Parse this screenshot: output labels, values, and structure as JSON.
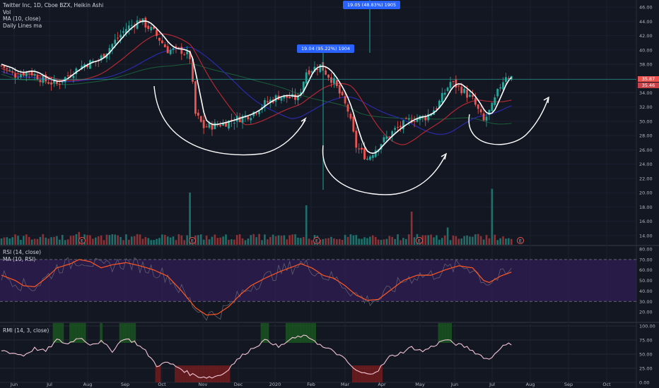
{
  "header": {
    "title": "Twitter Inc, 1D, Cboe BZX, Heikin Ashi",
    "vol": "Vol",
    "ma": "MA (10, close)",
    "daily": "Daily Lines ma"
  },
  "rsi_panel": {
    "title": "RSI (14, close)",
    "ma": "MA (10, RSI)"
  },
  "rmi_panel": {
    "title": "RMI (14, 3, close)"
  },
  "annotations": {
    "box1": "19.04 (95.22%) 1904",
    "box2": "19.05 (48.83%) 1905",
    "last_price": "35.87",
    "last_price2": "35.46"
  },
  "colors": {
    "up": "#26a69a",
    "down": "#ef5350",
    "ma10": "#ffffff",
    "ma_red": "#b22833",
    "ma_blue": "#2a2aa8",
    "ma_green": "#1b5e3a",
    "rsi_line": "#ff5722",
    "rsi_band": "#3d1f66",
    "rmi_line": "#f3c5d6"
  },
  "chart_data": [
    {
      "type": "candlestick",
      "title": "Twitter Inc, 1D, Cboe BZX, Heikin Ashi",
      "x_labels": [
        "Jun",
        "Jul",
        "Aug",
        "Sep",
        "Oct",
        "Nov",
        "Dec",
        "2020",
        "Feb",
        "Mar",
        "Apr",
        "May",
        "Jun",
        "Jul",
        "Aug",
        "Sep",
        "Oct"
      ],
      "y_ticks": [
        14,
        16,
        18,
        20,
        22,
        24,
        26,
        28,
        30,
        32,
        34,
        36,
        38,
        40,
        42,
        44,
        46
      ],
      "ylim": [
        12.6,
        47
      ],
      "price_path": [
        [
          0,
          37.8
        ],
        [
          5,
          36.5
        ],
        [
          10,
          37
        ],
        [
          15,
          35.8
        ],
        [
          20,
          35.2
        ],
        [
          25,
          36.7
        ],
        [
          30,
          38
        ],
        [
          35,
          38.5
        ],
        [
          40,
          40.8
        ],
        [
          45,
          43
        ],
        [
          50,
          44.2
        ],
        [
          55,
          42.5
        ],
        [
          60,
          40
        ],
        [
          65,
          39.9
        ],
        [
          68,
          39
        ],
        [
          70,
          31
        ],
        [
          73,
          29.2
        ],
        [
          78,
          29.5
        ],
        [
          84,
          30.2
        ],
        [
          90,
          31
        ],
        [
          95,
          32.5
        ],
        [
          100,
          33.5
        ],
        [
          107,
          33.2
        ],
        [
          110,
          37
        ],
        [
          115,
          37.8
        ],
        [
          120,
          35.5
        ],
        [
          125,
          31.5
        ],
        [
          128,
          26.5
        ],
        [
          132,
          24.8
        ],
        [
          137,
          27
        ],
        [
          142,
          28.8
        ],
        [
          148,
          30.3
        ],
        [
          153,
          30.6
        ],
        [
          157,
          32
        ],
        [
          162,
          35.5
        ],
        [
          166,
          34.5
        ],
        [
          170,
          33
        ],
        [
          174,
          30
        ],
        [
          177,
          32
        ],
        [
          180,
          35
        ],
        [
          182,
          36.5
        ],
        [
          184,
          36.2
        ]
      ],
      "volume": {
        "baseline": 5,
        "spikes": [
          {
            "x_index": 28,
            "rel": 1.8
          },
          {
            "x_index": 68,
            "rel": 8
          },
          {
            "x_index": 110,
            "rel": 6
          },
          {
            "x_index": 148,
            "rel": 5
          },
          {
            "x_index": 161,
            "rel": 2.5
          },
          {
            "x_index": 177,
            "rel": 8.6
          }
        ]
      },
      "earnings_markers": [
        "E",
        "E",
        "E",
        "E",
        "E"
      ],
      "series": [
        {
          "name": "MA (10, close)",
          "color": "#ffffff"
        },
        {
          "name": "Daily Lines ma",
          "colors": [
            "#b22833",
            "#2a2aa8",
            "#1b5e3a"
          ]
        }
      ],
      "last_price": 35.87
    },
    {
      "type": "line",
      "title": "RSI (14, close)",
      "ylim": [
        10,
        80
      ],
      "y_ticks": [
        20,
        30,
        40,
        50,
        60,
        70,
        80
      ],
      "bands": [
        30,
        70
      ],
      "rsi_ma_path": [
        [
          0,
          55
        ],
        [
          5,
          50
        ],
        [
          8,
          45
        ],
        [
          12,
          44
        ],
        [
          16,
          52
        ],
        [
          20,
          62
        ],
        [
          25,
          66
        ],
        [
          28,
          70
        ],
        [
          32,
          68
        ],
        [
          36,
          62
        ],
        [
          40,
          65
        ],
        [
          45,
          67
        ],
        [
          50,
          64
        ],
        [
          55,
          60
        ],
        [
          60,
          54
        ],
        [
          65,
          40
        ],
        [
          70,
          24
        ],
        [
          74,
          17
        ],
        [
          78,
          18
        ],
        [
          82,
          25
        ],
        [
          86,
          36
        ],
        [
          90,
          45
        ],
        [
          95,
          52
        ],
        [
          100,
          58
        ],
        [
          105,
          63
        ],
        [
          108,
          66
        ],
        [
          112,
          62
        ],
        [
          116,
          55
        ],
        [
          120,
          52
        ],
        [
          124,
          45
        ],
        [
          128,
          36
        ],
        [
          132,
          31
        ],
        [
          136,
          32
        ],
        [
          140,
          40
        ],
        [
          145,
          50
        ],
        [
          150,
          55
        ],
        [
          155,
          55
        ],
        [
          160,
          60
        ],
        [
          165,
          64
        ],
        [
          170,
          62
        ],
        [
          174,
          50
        ],
        [
          176,
          48
        ],
        [
          180,
          54
        ],
        [
          184,
          58
        ]
      ]
    },
    {
      "type": "line",
      "title": "RMI (14, 3, close)",
      "ylim": [
        0,
        100
      ],
      "y_ticks": [
        0,
        25,
        50,
        75,
        100
      ],
      "bands": [
        30,
        70
      ],
      "rmi_path": [
        [
          0,
          57
        ],
        [
          4,
          52
        ],
        [
          8,
          48
        ],
        [
          12,
          60
        ],
        [
          16,
          55
        ],
        [
          20,
          75
        ],
        [
          24,
          68
        ],
        [
          28,
          80
        ],
        [
          32,
          68
        ],
        [
          36,
          72
        ],
        [
          40,
          56
        ],
        [
          44,
          78
        ],
        [
          48,
          72
        ],
        [
          52,
          55
        ],
        [
          56,
          30
        ],
        [
          60,
          35
        ],
        [
          64,
          26
        ],
        [
          68,
          15
        ],
        [
          72,
          10
        ],
        [
          76,
          9
        ],
        [
          80,
          15
        ],
        [
          84,
          35
        ],
        [
          88,
          52
        ],
        [
          92,
          65
        ],
        [
          96,
          76
        ],
        [
          100,
          62
        ],
        [
          104,
          75
        ],
        [
          108,
          82
        ],
        [
          112,
          78
        ],
        [
          116,
          62
        ],
        [
          120,
          55
        ],
        [
          124,
          40
        ],
        [
          128,
          20
        ],
        [
          132,
          14
        ],
        [
          136,
          22
        ],
        [
          140,
          45
        ],
        [
          144,
          52
        ],
        [
          148,
          62
        ],
        [
          152,
          55
        ],
        [
          156,
          65
        ],
        [
          160,
          76
        ],
        [
          164,
          68
        ],
        [
          168,
          62
        ],
        [
          172,
          50
        ],
        [
          176,
          40
        ],
        [
          180,
          62
        ],
        [
          184,
          69
        ]
      ]
    }
  ]
}
